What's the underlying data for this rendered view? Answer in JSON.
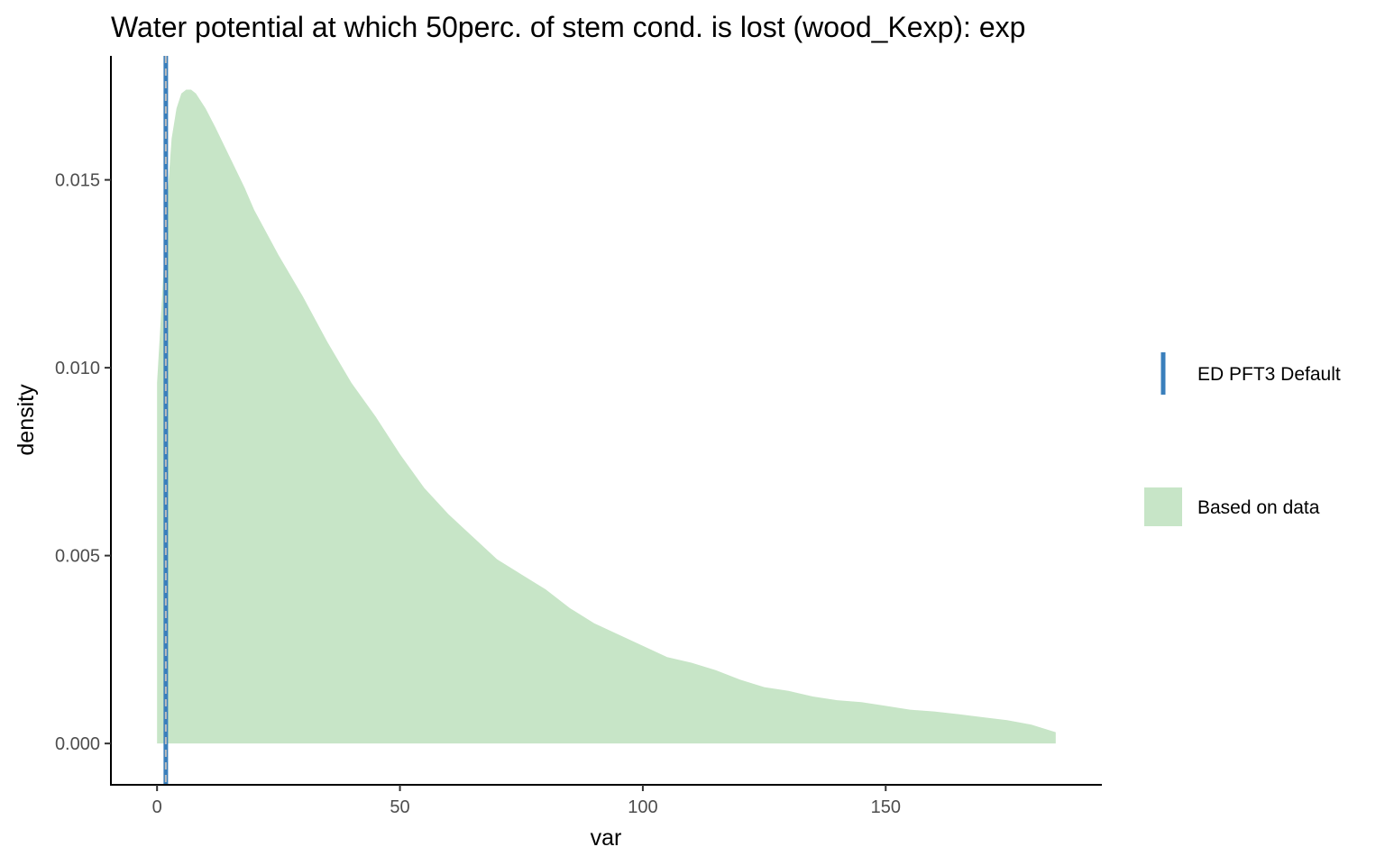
{
  "chart_data": {
    "type": "area",
    "title": "Water potential at which 50perc. of stem cond. is lost (wood_Kexp): exp",
    "xlabel": "var",
    "ylabel": "density",
    "xlim": [
      -9.5,
      194.5
    ],
    "ylim": [
      -0.0011,
      0.0183
    ],
    "x_ticks": [
      0,
      50,
      100,
      150
    ],
    "x_tick_labels": [
      "0",
      "50",
      "100",
      "150"
    ],
    "y_ticks": [
      0.0,
      0.005,
      0.01,
      0.015
    ],
    "y_tick_labels": [
      "0.000",
      "0.005",
      "0.010",
      "0.015"
    ],
    "grid": false,
    "legend_position": "right",
    "colors": {
      "density_fill": "#c7e5c7",
      "default_line": "#3a7fbc",
      "default_dash": "#bdbdbd"
    },
    "series": [
      {
        "name": "Based on data",
        "kind": "density",
        "x": [
          0,
          1,
          2,
          3,
          4,
          5,
          6,
          7,
          8,
          10,
          12,
          15,
          18,
          20,
          25,
          30,
          35,
          40,
          45,
          50,
          55,
          60,
          65,
          70,
          75,
          80,
          85,
          90,
          95,
          100,
          105,
          110,
          115,
          120,
          125,
          130,
          135,
          140,
          145,
          150,
          155,
          160,
          165,
          170,
          175,
          180,
          185
        ],
        "y": [
          0.0096,
          0.0118,
          0.0143,
          0.0161,
          0.0169,
          0.0173,
          0.0174,
          0.0174,
          0.0173,
          0.0169,
          0.0164,
          0.0156,
          0.0148,
          0.0142,
          0.013,
          0.0119,
          0.0107,
          0.0096,
          0.0087,
          0.0077,
          0.0068,
          0.0061,
          0.0055,
          0.0049,
          0.0045,
          0.0041,
          0.0036,
          0.0032,
          0.0029,
          0.0026,
          0.0023,
          0.00215,
          0.00195,
          0.0017,
          0.0015,
          0.0014,
          0.00125,
          0.00115,
          0.0011,
          0.001,
          0.0009,
          0.00085,
          0.00078,
          0.0007,
          0.00062,
          0.0005,
          0.0003
        ]
      }
    ],
    "reference_lines": [
      {
        "name": "ED PFT3 Default",
        "x": 1.8
      }
    ],
    "legend": [
      {
        "label": "ED PFT3 Default",
        "kind": "line"
      },
      {
        "label": "Based on data",
        "kind": "fill"
      }
    ]
  }
}
